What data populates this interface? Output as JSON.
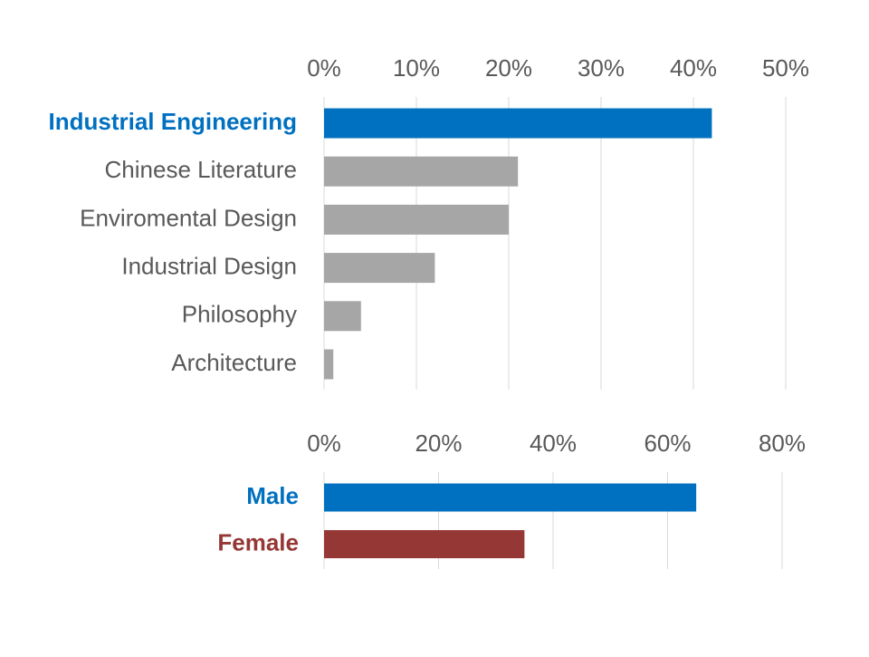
{
  "chart_data": [
    {
      "type": "bar",
      "orientation": "horizontal",
      "categories": [
        "Industrial Engineering",
        "Chinese Literature",
        "Enviromental Design",
        "Industrial Design",
        "Philosophy",
        "Architecture"
      ],
      "values": [
        42,
        21,
        20,
        12,
        4,
        1
      ],
      "unit": "%",
      "xlim": [
        0,
        50
      ],
      "xticks": [
        "0%",
        "10%",
        "20%",
        "30%",
        "40%",
        "50%"
      ],
      "xtick_values": [
        0,
        10,
        20,
        30,
        40,
        50
      ],
      "grid": true,
      "axis_position": "top",
      "bar_colors": [
        "#0070c0",
        "#a6a6a6",
        "#a6a6a6",
        "#a6a6a6",
        "#a6a6a6",
        "#a6a6a6"
      ],
      "label_colors": [
        "#0070c0",
        "#595959",
        "#595959",
        "#595959",
        "#595959",
        "#595959"
      ],
      "highlight_index": 0
    },
    {
      "type": "bar",
      "orientation": "horizontal",
      "categories": [
        "Male",
        "Female"
      ],
      "values": [
        65,
        35
      ],
      "unit": "%",
      "xlim": [
        0,
        80
      ],
      "xticks": [
        "0%",
        "20%",
        "40%",
        "60%",
        "80%"
      ],
      "xtick_values": [
        0,
        20,
        40,
        60,
        80
      ],
      "grid": true,
      "axis_position": "top",
      "bar_colors": [
        "#0070c0",
        "#953735"
      ],
      "label_colors": [
        "#0070c0",
        "#953735"
      ],
      "highlight_index": [
        0,
        1
      ]
    }
  ]
}
